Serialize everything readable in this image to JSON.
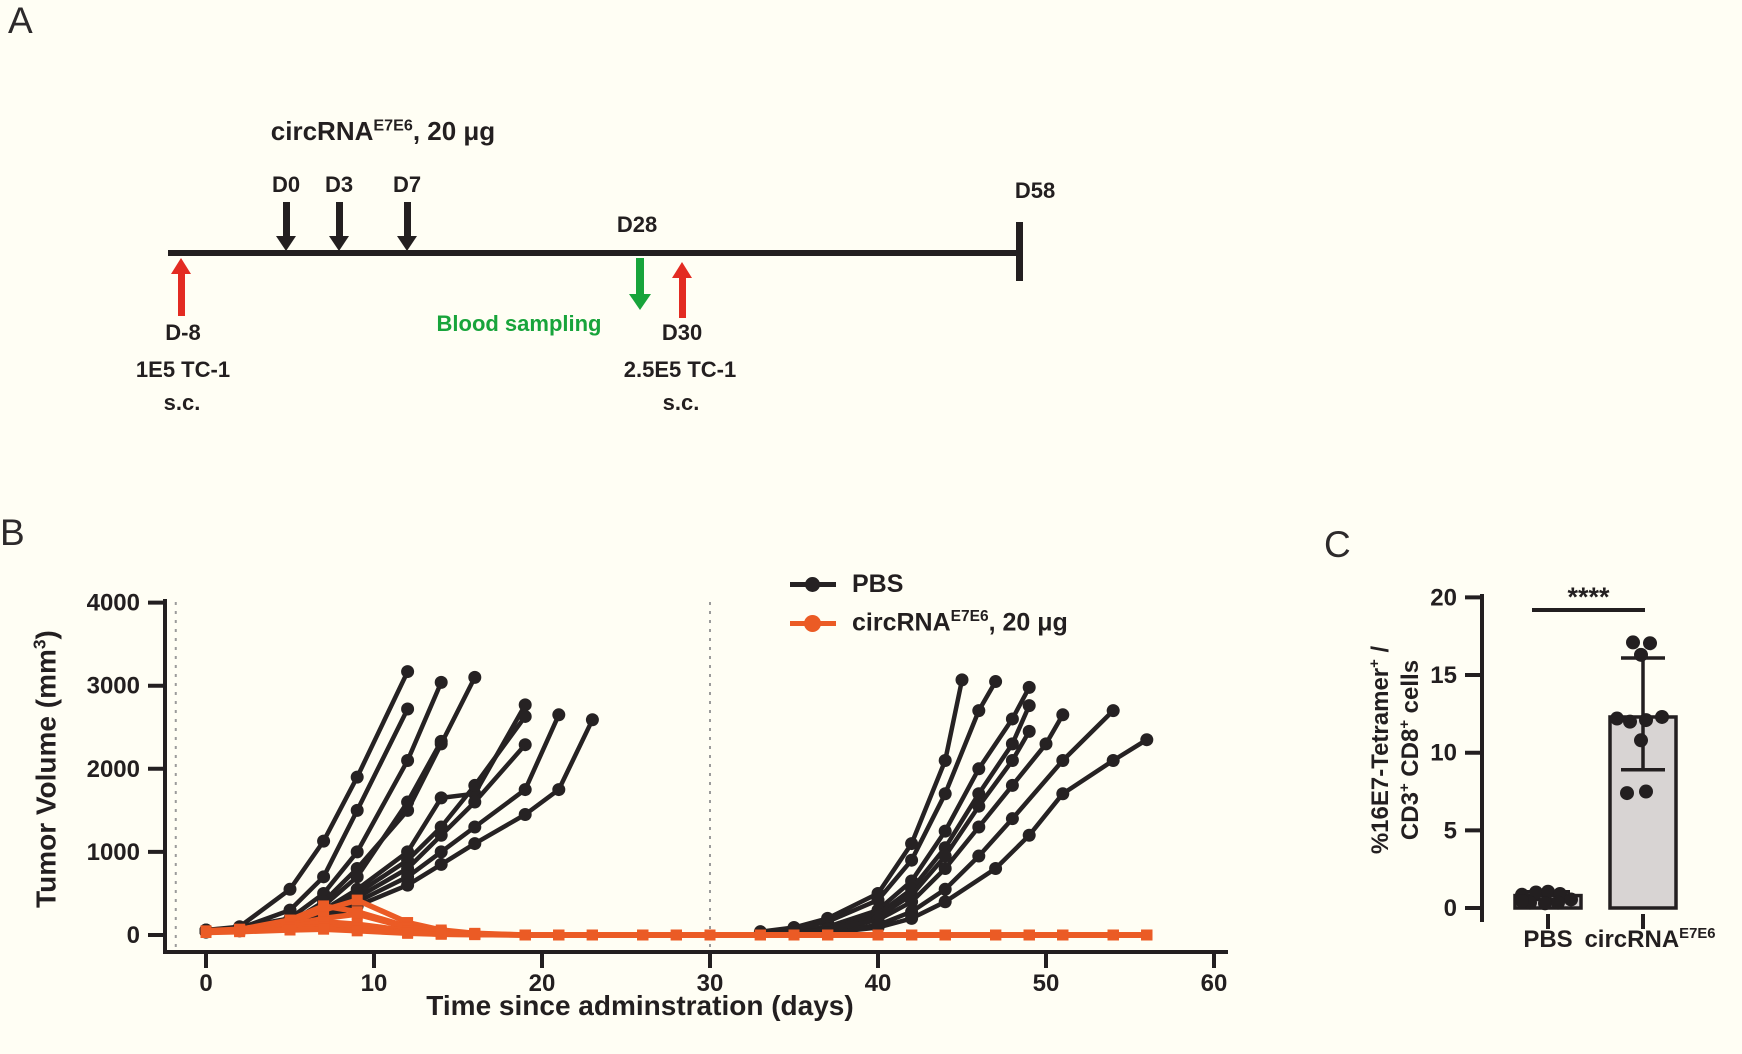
{
  "figure": {
    "background": "#fffef4",
    "ink": "#231f20"
  },
  "panelA": {
    "label": "A",
    "title": {
      "base": "circRNA",
      "sup": "E7E6",
      "rest": ", 20 μg"
    },
    "doses": [
      {
        "day": "D0"
      },
      {
        "day": "D3"
      },
      {
        "day": "D7"
      }
    ],
    "blood_sampling": {
      "day": "D28",
      "label": "Blood sampling"
    },
    "endpoint": {
      "day": "D58"
    },
    "tumor_inoculation_1": {
      "day": "D-8",
      "cells": "1E5 TC-1",
      "route": "s.c."
    },
    "tumor_inoculation_2": {
      "day": "D30",
      "cells": "2.5E5 TC-1",
      "route": "s.c."
    },
    "colors": {
      "dose_arrow": "#231f20",
      "tumor_arrow": "#e32b22",
      "blood_arrow": "#18a43b"
    }
  },
  "panelB": {
    "label": "B",
    "ylabel": {
      "base": "Tumor Volume (mm",
      "sup": "3",
      "rest": ")"
    },
    "xlabel": "Time since adminstration (days)",
    "legend": [
      {
        "label": "PBS",
        "color": "#231f20"
      },
      {
        "base": "circRNA",
        "sup": "E7E6",
        "rest": ", 20 μg",
        "color": "#eb5b25"
      }
    ],
    "chart_data": {
      "type": "line",
      "title": "",
      "xlabel": "Time since adminstration (days)",
      "ylabel": "Tumor Volume (mm3)",
      "xlim": [
        -2.5,
        61
      ],
      "ylim": [
        0,
        4000
      ],
      "xticks": [
        0,
        10,
        20,
        30,
        40,
        50,
        60
      ],
      "yticks": [
        0,
        1000,
        2000,
        3000,
        4000
      ],
      "dashed_vlines": [
        -1.8,
        30
      ],
      "grid": false,
      "legend_position": "top-right-inside",
      "series": [
        {
          "name": "PBS",
          "color": "#262223",
          "marker": "circle",
          "mice": [
            {
              "x": [
                0,
                2,
                5,
                7,
                9,
                12
              ],
              "y": [
                60,
                100,
                550,
                1130,
                1900,
                3170
              ]
            },
            {
              "x": [
                0,
                2,
                5,
                7,
                9,
                12
              ],
              "y": [
                50,
                80,
                300,
                700,
                1500,
                2720
              ]
            },
            {
              "x": [
                0,
                2,
                5,
                7,
                9,
                12,
                14
              ],
              "y": [
                60,
                90,
                200,
                500,
                1000,
                2100,
                3040
              ]
            },
            {
              "x": [
                0,
                2,
                5,
                7,
                9,
                12,
                14,
                16
              ],
              "y": [
                50,
                70,
                150,
                400,
                800,
                1500,
                2300,
                3100
              ]
            },
            {
              "x": [
                0,
                2,
                5,
                7,
                9,
                12,
                14
              ],
              "y": [
                40,
                60,
                120,
                350,
                700,
                1600,
                2330
              ]
            },
            {
              "x": [
                0,
                2,
                5,
                7,
                9,
                12,
                14,
                16,
                19
              ],
              "y": [
                50,
                70,
                150,
                300,
                550,
                1000,
                1650,
                1700,
                2770
              ]
            },
            {
              "x": [
                0,
                2,
                5,
                7,
                9,
                12,
                14,
                16,
                19
              ],
              "y": [
                45,
                65,
                130,
                280,
                500,
                900,
                1300,
                1800,
                2630
              ]
            },
            {
              "x": [
                0,
                2,
                5,
                7,
                9,
                12,
                14,
                16,
                19
              ],
              "y": [
                40,
                60,
                110,
                250,
                450,
                800,
                1200,
                1600,
                2290
              ]
            },
            {
              "x": [
                0,
                2,
                5,
                7,
                9,
                12,
                14,
                16,
                19,
                21
              ],
              "y": [
                40,
                55,
                100,
                200,
                400,
                700,
                1000,
                1300,
                1750,
                2650
              ]
            },
            {
              "x": [
                0,
                2,
                5,
                7,
                9,
                12,
                14,
                16,
                19,
                21,
                23
              ],
              "y": [
                35,
                50,
                90,
                180,
                350,
                600,
                850,
                1100,
                1450,
                1750,
                2590
              ]
            },
            {
              "x": [
                33,
                35,
                37,
                40,
                42,
                44,
                45
              ],
              "y": [
                40,
                90,
                200,
                500,
                1100,
                2100,
                3070
              ]
            },
            {
              "x": [
                33,
                35,
                37,
                40,
                42,
                44,
                46,
                47
              ],
              "y": [
                30,
                70,
                160,
                420,
                900,
                1700,
                2700,
                3050
              ]
            },
            {
              "x": [
                35,
                37,
                40,
                42,
                44,
                46,
                48,
                49
              ],
              "y": [
                40,
                100,
                300,
                650,
                1250,
                2000,
                2600,
                2980
              ]
            },
            {
              "x": [
                35,
                37,
                40,
                42,
                44,
                46,
                48,
                49
              ],
              "y": [
                30,
                80,
                250,
                550,
                1050,
                1700,
                2300,
                2760
              ]
            },
            {
              "x": [
                35,
                37,
                40,
                42,
                44,
                46,
                48,
                49
              ],
              "y": [
                30,
                70,
                220,
                480,
                950,
                1550,
                2100,
                2450
              ]
            },
            {
              "x": [
                35,
                37,
                40,
                42,
                44,
                46,
                48,
                50,
                51
              ],
              "y": [
                25,
                60,
                180,
                400,
                800,
                1300,
                1800,
                2300,
                2650
              ]
            },
            {
              "x": [
                37,
                40,
                42,
                44,
                46,
                48,
                51,
                54
              ],
              "y": [
                30,
                120,
                280,
                550,
                950,
                1400,
                2100,
                2700
              ]
            },
            {
              "x": [
                37,
                40,
                42,
                44,
                47,
                49,
                51,
                54,
                56
              ],
              "y": [
                25,
                90,
                200,
                400,
                800,
                1200,
                1700,
                2100,
                2350
              ]
            }
          ]
        },
        {
          "name": "circRNA E7E6, 20 ug",
          "color": "#eb5b25",
          "marker": "square",
          "days": [
            0,
            2,
            5,
            7,
            9,
            12,
            14,
            16,
            19,
            21,
            23,
            26,
            28,
            30,
            33,
            35,
            37,
            40,
            42,
            44,
            47,
            49,
            51,
            54,
            56
          ],
          "mice": [
            [
              50,
              70,
              150,
              300,
              420,
              150,
              60,
              20,
              0,
              0,
              0,
              0,
              0,
              0,
              0,
              0,
              0,
              0,
              0,
              0,
              0,
              0,
              0,
              0,
              0
            ],
            [
              45,
              65,
              180,
              350,
              280,
              100,
              40,
              15,
              0,
              0,
              0,
              0,
              0,
              0,
              0,
              0,
              0,
              0,
              0,
              0,
              0,
              0,
              0,
              0,
              0
            ],
            [
              40,
              60,
              120,
              200,
              250,
              90,
              30,
              10,
              0,
              0,
              0,
              0,
              0,
              0,
              0,
              0,
              0,
              0,
              0,
              0,
              0,
              0,
              0,
              0,
              0
            ],
            [
              40,
              55,
              100,
              160,
              130,
              50,
              20,
              10,
              0,
              0,
              0,
              0,
              0,
              0,
              0,
              0,
              0,
              0,
              0,
              0,
              0,
              0,
              0,
              0,
              0
            ],
            [
              35,
              50,
              80,
              100,
              80,
              30,
              10,
              5,
              0,
              0,
              0,
              0,
              0,
              0,
              0,
              0,
              0,
              0,
              0,
              0,
              0,
              0,
              0,
              0,
              0
            ],
            [
              30,
              40,
              60,
              70,
              50,
              20,
              10,
              5,
              0,
              0,
              0,
              0,
              0,
              0,
              0,
              0,
              0,
              0,
              0,
              0,
              0,
              0,
              0,
              0,
              0
            ]
          ]
        }
      ]
    }
  },
  "panelC": {
    "label": "C",
    "ylabel1": {
      "base": "%16E7-Tetramer",
      "sup": "+",
      "rest": " /"
    },
    "ylabel2": {
      "p1": "CD3",
      "s1": "+",
      "p2": " CD8",
      "s2": "+",
      "p3": " cells"
    },
    "xlabels": [
      {
        "base": "PBS",
        "sup": ""
      },
      {
        "base": "circRNA",
        "sup": "E7E6"
      }
    ],
    "chart_data": {
      "type": "bar",
      "categories": [
        "PBS",
        "circRNA E7E6"
      ],
      "values": [
        0.8,
        12.3
      ],
      "error_low": [
        0.55,
        8.9
      ],
      "error_high": [
        1.05,
        16.1
      ],
      "ylim": [
        0,
        20
      ],
      "yticks": [
        0,
        5,
        10,
        15,
        20
      ],
      "bar_fill": "#d8d4d3",
      "bar_stroke": "#231f20",
      "significance": {
        "label": "****",
        "groups": [
          0,
          1
        ]
      },
      "points": [
        [
          {
            "dx": -26,
            "v": 0.85
          },
          {
            "dx": -12,
            "v": 1.0
          },
          {
            "dx": 0,
            "v": 1.05
          },
          {
            "dx": 12,
            "v": 0.9
          },
          {
            "dx": 23,
            "v": 0.55
          },
          {
            "dx": -18,
            "v": 0.35
          },
          {
            "dx": -3,
            "v": 0.3
          },
          {
            "dx": 10,
            "v": 0.35
          },
          {
            "dx": -26,
            "v": 0.45
          }
        ],
        [
          {
            "dx": -10,
            "v": 17.1
          },
          {
            "dx": 7,
            "v": 17.05
          },
          {
            "dx": -2,
            "v": 16.3
          },
          {
            "dx": -26,
            "v": 12.2
          },
          {
            "dx": -13,
            "v": 12.0
          },
          {
            "dx": 3,
            "v": 12.1
          },
          {
            "dx": 19,
            "v": 12.3
          },
          {
            "dx": -2,
            "v": 10.8
          },
          {
            "dx": -16,
            "v": 7.4
          },
          {
            "dx": 3,
            "v": 7.5
          }
        ]
      ]
    }
  }
}
